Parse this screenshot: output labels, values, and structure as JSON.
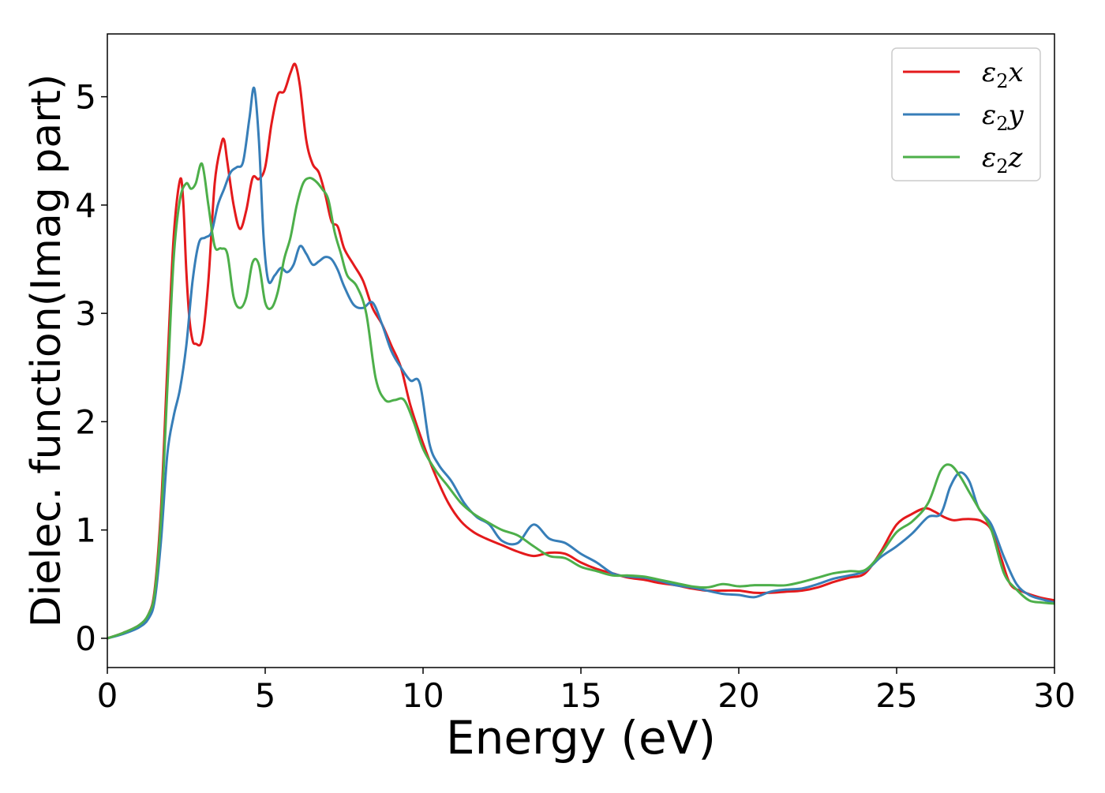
{
  "chart_data": {
    "type": "line",
    "title": "",
    "xlabel": "Energy (eV)",
    "ylabel": "Dielec. function(Imag part)",
    "xlim": [
      0,
      30
    ],
    "ylim": [
      -0.27,
      5.58
    ],
    "xticks": [
      0,
      5,
      10,
      15,
      20,
      25,
      30
    ],
    "xtick_labels": [
      "0",
      "5",
      "10",
      "15",
      "20",
      "25",
      "30"
    ],
    "yticks": [
      0,
      1,
      2,
      3,
      4,
      5
    ],
    "ytick_labels": [
      "0",
      "1",
      "2",
      "3",
      "4",
      "5"
    ],
    "grid": false,
    "legend_position": "top-right",
    "series": [
      {
        "name": "ε₂x",
        "legend_base": "ε",
        "legend_sub": "2",
        "legend_suffix": "x",
        "color": "#e41a1c",
        "x": [
          0,
          0.5,
          1.0,
          1.3,
          1.5,
          1.7,
          1.9,
          2.1,
          2.3,
          2.4,
          2.5,
          2.6,
          2.7,
          2.8,
          3.0,
          3.2,
          3.4,
          3.6,
          3.7,
          3.8,
          4.0,
          4.2,
          4.4,
          4.6,
          4.8,
          5.0,
          5.2,
          5.4,
          5.6,
          5.8,
          5.95,
          6.1,
          6.3,
          6.5,
          6.7,
          6.9,
          7.1,
          7.3,
          7.5,
          7.8,
          8.1,
          8.4,
          8.7,
          9.0,
          9.3,
          9.6,
          10.0,
          10.4,
          10.8,
          11.2,
          11.6,
          12.0,
          12.5,
          13.0,
          13.5,
          14.0,
          14.5,
          15.0,
          15.5,
          16.0,
          16.5,
          17.0,
          17.5,
          18.0,
          18.5,
          19.0,
          19.5,
          20.0,
          20.5,
          21.0,
          21.5,
          22.0,
          22.5,
          23.0,
          23.5,
          24.0,
          24.5,
          25.0,
          25.5,
          25.9,
          26.2,
          26.5,
          26.8,
          27.1,
          27.4,
          27.7,
          28.0,
          28.3,
          28.6,
          29.0,
          29.5,
          30.0
        ],
        "y": [
          0.0,
          0.05,
          0.12,
          0.22,
          0.45,
          1.2,
          2.5,
          3.7,
          4.23,
          4.05,
          3.4,
          2.95,
          2.75,
          2.72,
          2.76,
          3.3,
          4.2,
          4.55,
          4.6,
          4.4,
          4.0,
          3.78,
          3.95,
          4.25,
          4.24,
          4.35,
          4.75,
          5.02,
          5.05,
          5.22,
          5.3,
          5.1,
          4.6,
          4.38,
          4.3,
          4.1,
          3.85,
          3.8,
          3.6,
          3.45,
          3.3,
          3.05,
          2.9,
          2.7,
          2.5,
          2.15,
          1.8,
          1.5,
          1.25,
          1.08,
          0.98,
          0.92,
          0.86,
          0.8,
          0.76,
          0.79,
          0.78,
          0.7,
          0.64,
          0.6,
          0.56,
          0.54,
          0.51,
          0.49,
          0.46,
          0.44,
          0.44,
          0.44,
          0.42,
          0.42,
          0.43,
          0.44,
          0.47,
          0.52,
          0.56,
          0.6,
          0.8,
          1.05,
          1.15,
          1.2,
          1.17,
          1.12,
          1.09,
          1.1,
          1.1,
          1.08,
          1.0,
          0.75,
          0.5,
          0.43,
          0.38,
          0.35
        ]
      },
      {
        "name": "ε₂y",
        "legend_base": "ε",
        "legend_sub": "2",
        "legend_suffix": "y",
        "color": "#377eb8",
        "x": [
          0,
          0.5,
          1.0,
          1.3,
          1.5,
          1.7,
          1.9,
          2.1,
          2.3,
          2.5,
          2.7,
          2.9,
          3.1,
          3.3,
          3.5,
          3.7,
          3.9,
          4.1,
          4.3,
          4.5,
          4.65,
          4.8,
          4.95,
          5.1,
          5.3,
          5.5,
          5.7,
          5.9,
          6.1,
          6.3,
          6.5,
          6.7,
          6.9,
          7.1,
          7.3,
          7.5,
          7.8,
          8.1,
          8.4,
          8.7,
          9.0,
          9.3,
          9.6,
          9.9,
          10.2,
          10.5,
          10.9,
          11.3,
          11.7,
          12.1,
          12.5,
          13.0,
          13.5,
          14.0,
          14.5,
          15.0,
          15.5,
          16.0,
          16.5,
          17.0,
          17.5,
          18.0,
          18.5,
          19.0,
          19.5,
          20.0,
          20.5,
          21.0,
          21.5,
          22.0,
          22.5,
          23.0,
          23.5,
          24.0,
          24.5,
          25.0,
          25.5,
          26.0,
          26.4,
          26.7,
          27.0,
          27.3,
          27.6,
          28.0,
          28.4,
          28.8,
          29.2,
          29.6,
          30.0
        ],
        "y": [
          0.0,
          0.04,
          0.1,
          0.18,
          0.35,
          0.9,
          1.7,
          2.05,
          2.3,
          2.7,
          3.3,
          3.65,
          3.7,
          3.75,
          4.0,
          4.15,
          4.3,
          4.35,
          4.4,
          4.8,
          5.08,
          4.6,
          3.7,
          3.3,
          3.35,
          3.42,
          3.38,
          3.45,
          3.62,
          3.55,
          3.45,
          3.48,
          3.52,
          3.5,
          3.4,
          3.25,
          3.08,
          3.05,
          3.1,
          2.9,
          2.65,
          2.5,
          2.38,
          2.35,
          1.8,
          1.6,
          1.45,
          1.25,
          1.12,
          1.05,
          0.9,
          0.88,
          1.05,
          0.92,
          0.88,
          0.78,
          0.7,
          0.6,
          0.57,
          0.56,
          0.53,
          0.49,
          0.47,
          0.44,
          0.41,
          0.4,
          0.38,
          0.43,
          0.45,
          0.46,
          0.5,
          0.55,
          0.58,
          0.62,
          0.75,
          0.85,
          0.97,
          1.12,
          1.15,
          1.4,
          1.53,
          1.45,
          1.2,
          1.05,
          0.75,
          0.5,
          0.4,
          0.36,
          0.33
        ]
      },
      {
        "name": "ε₂z",
        "legend_base": "ε",
        "legend_sub": "2",
        "legend_suffix": "z",
        "color": "#4daf4a",
        "x": [
          0,
          0.5,
          1.0,
          1.3,
          1.5,
          1.7,
          1.9,
          2.1,
          2.3,
          2.5,
          2.65,
          2.8,
          3.0,
          3.2,
          3.4,
          3.6,
          3.8,
          4.0,
          4.2,
          4.4,
          4.6,
          4.8,
          5.0,
          5.2,
          5.4,
          5.6,
          5.8,
          6.0,
          6.2,
          6.4,
          6.6,
          6.8,
          7.0,
          7.2,
          7.4,
          7.6,
          7.9,
          8.2,
          8.5,
          8.8,
          9.1,
          9.4,
          9.7,
          10.0,
          10.4,
          10.8,
          11.2,
          11.6,
          12.0,
          12.5,
          13.0,
          13.5,
          14.0,
          14.5,
          15.0,
          15.5,
          16.0,
          16.5,
          17.0,
          17.5,
          18.0,
          18.5,
          19.0,
          19.5,
          20.0,
          20.5,
          21.0,
          21.5,
          22.0,
          22.5,
          23.0,
          23.5,
          24.0,
          24.5,
          25.0,
          25.5,
          26.0,
          26.4,
          26.7,
          27.0,
          27.3,
          27.6,
          28.0,
          28.4,
          28.8,
          29.2,
          29.6,
          30.0
        ],
        "y": [
          0.0,
          0.05,
          0.12,
          0.22,
          0.42,
          1.1,
          2.3,
          3.5,
          4.05,
          4.2,
          4.15,
          4.2,
          4.38,
          4.0,
          3.62,
          3.6,
          3.55,
          3.15,
          3.05,
          3.15,
          3.47,
          3.45,
          3.1,
          3.05,
          3.2,
          3.5,
          3.7,
          4.0,
          4.2,
          4.25,
          4.22,
          4.15,
          4.05,
          3.75,
          3.55,
          3.35,
          3.25,
          3.0,
          2.4,
          2.2,
          2.2,
          2.2,
          2.0,
          1.75,
          1.55,
          1.4,
          1.25,
          1.15,
          1.08,
          1.0,
          0.95,
          0.85,
          0.76,
          0.74,
          0.66,
          0.62,
          0.58,
          0.58,
          0.57,
          0.54,
          0.51,
          0.48,
          0.47,
          0.5,
          0.48,
          0.49,
          0.49,
          0.49,
          0.52,
          0.56,
          0.6,
          0.62,
          0.63,
          0.78,
          0.98,
          1.08,
          1.25,
          1.55,
          1.6,
          1.5,
          1.35,
          1.2,
          1.0,
          0.6,
          0.45,
          0.35,
          0.33,
          0.32
        ]
      }
    ]
  }
}
